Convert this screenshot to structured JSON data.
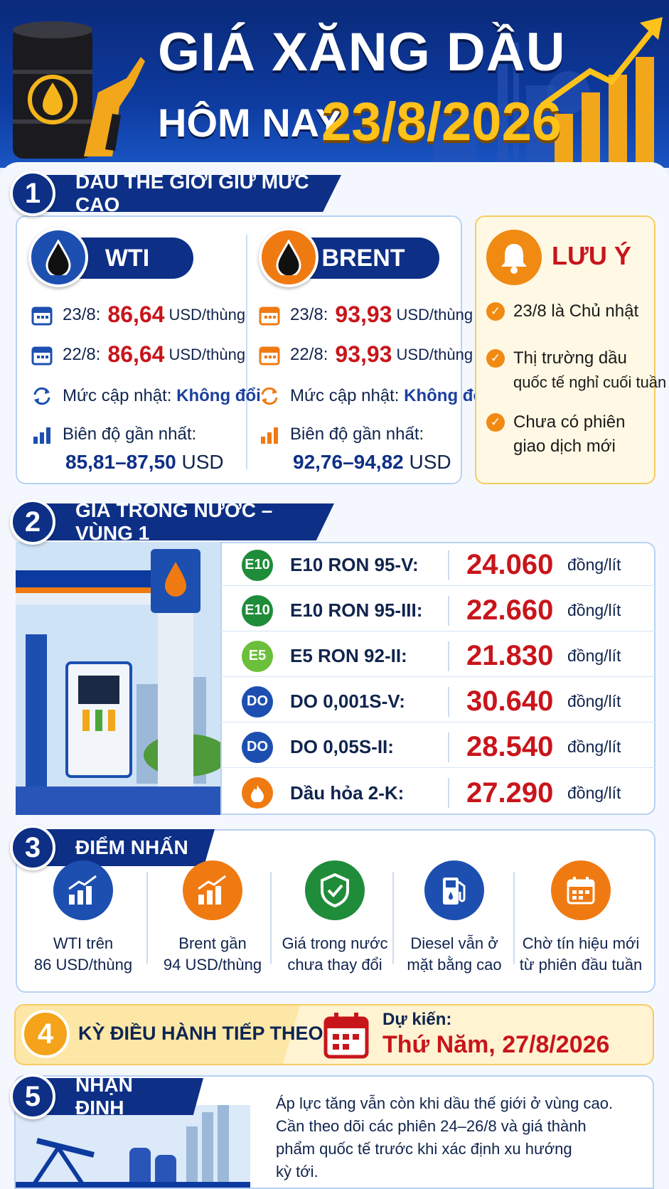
{
  "header": {
    "title_line1": "GIÁ XĂNG DẦU",
    "title_line2": "HÔM NAY",
    "date": "23/8/2026"
  },
  "section1": {
    "number": "1",
    "title": "DẦU THẾ GIỚI GIỮ MỨC CAO",
    "wti": {
      "name": "WTI",
      "d1_label": "23/8:",
      "d1_value": "86,64",
      "unit": "USD/thùng",
      "d2_label": "22/8:",
      "d2_value": "86,64",
      "update_label": "Mức cập nhật:",
      "update_value": "Không đổi",
      "range_label": "Biên độ gần nhất:",
      "range_value": "85,81–87,50",
      "range_unit": "USD"
    },
    "brent": {
      "name": "BRENT",
      "d1_label": "23/8:",
      "d1_value": "93,93",
      "unit": "USD/thùng",
      "d2_label": "22/8:",
      "d2_value": "93,93",
      "update_label": "Mức cập nhật:",
      "update_value": "Không đổi",
      "range_label": "Biên độ gần nhất:",
      "range_value": "92,76–94,82",
      "range_unit": "USD"
    },
    "note": {
      "title": "LƯU Ý",
      "items": [
        {
          "line1": "23/8 là Chủ nhật",
          "line2": ""
        },
        {
          "line1": "Thị trường dầu",
          "line2": "quốc tế nghỉ cuối tuần"
        },
        {
          "line1": "Chưa có phiên",
          "line2": "giao dịch mới"
        }
      ]
    }
  },
  "section2": {
    "number": "2",
    "title": "GIÁ TRONG NƯỚC – VÙNG 1",
    "unit": "đồng/lít",
    "rows": [
      {
        "code": "E10",
        "name": "E10 RON 95-V:",
        "price": "24.060",
        "color": "#1f8c3a"
      },
      {
        "code": "E10",
        "name": "E10 RON 95-III:",
        "price": "22.660",
        "color": "#1f8c3a"
      },
      {
        "code": "E5",
        "name": "E5 RON 92-II:",
        "price": "21.830",
        "color": "#6bbf3a"
      },
      {
        "code": "DO",
        "name": "DO 0,001S-V:",
        "price": "30.640",
        "color": "#1c4fb0"
      },
      {
        "code": "DO",
        "name": "DO 0,05S-II:",
        "price": "28.540",
        "color": "#1c4fb0"
      },
      {
        "code": "",
        "name": "Dầu hỏa 2-K:",
        "price": "27.290",
        "color": "#f07a12",
        "icon": "flame-icon"
      }
    ]
  },
  "section3": {
    "number": "3",
    "title": "ĐIỂM NHẤN",
    "items": [
      {
        "icon": "bar-chart-up-icon",
        "line1": "WTI trên",
        "line2": "86 USD/thùng",
        "color": "#1c4fb0"
      },
      {
        "icon": "bar-chart-up-icon",
        "line1": "Brent gần",
        "line2": "94 USD/thùng",
        "color": "#f07a12"
      },
      {
        "icon": "shield-check-icon",
        "line1": "Giá trong nước",
        "line2": "chưa thay đổi",
        "color": "#1f8c3a"
      },
      {
        "icon": "fuel-pump-icon",
        "line1": "Diesel vẫn ở",
        "line2": "mặt bằng cao",
        "color": "#1c4fb0"
      },
      {
        "icon": "calendar-icon",
        "line1": "Chờ tín hiệu mới",
        "line2": "từ phiên đầu tuần",
        "color": "#f07a12"
      }
    ]
  },
  "section4": {
    "number": "4",
    "title": "KỲ ĐIỀU HÀNH TIẾP THEO",
    "expected_label": "Dự kiến:",
    "expected_date": "Thứ Năm, 27/8/2026"
  },
  "section5": {
    "number": "5",
    "title": "NHẬN ĐỊNH",
    "lines": [
      "Áp lực tăng vẫn còn khi dầu thế giới ở vùng cao.",
      "Cần theo dõi các phiên 24–26/8 và giá thành",
      "phẩm quốc tế trước khi xác định xu hướng",
      "kỳ tới."
    ]
  }
}
